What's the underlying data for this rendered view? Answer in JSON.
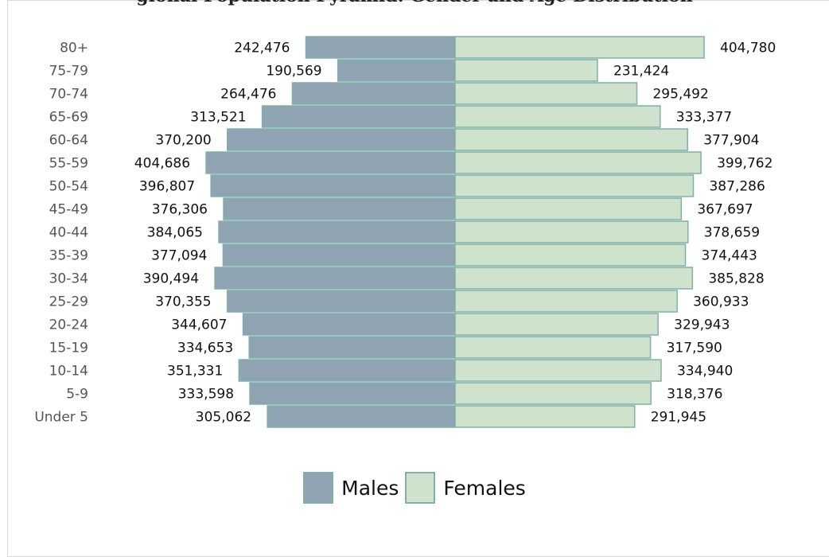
{
  "chart_data": {
    "type": "bar",
    "orientation": "horizontal",
    "layout": "population-pyramid",
    "title": "gional Population Pyramid: Gender and Age Distribution",
    "categories": [
      "80+",
      "75-79",
      "70-74",
      "65-69",
      "60-64",
      "55-59",
      "50-54",
      "45-49",
      "40-44",
      "35-39",
      "30-34",
      "25-29",
      "20-24",
      "15-19",
      "10-14",
      "5-9",
      "Under 5"
    ],
    "series": [
      {
        "name": "Males",
        "side": "left",
        "color": "#8fa3b3",
        "values": [
          242476,
          190569,
          264476,
          313521,
          370200,
          404686,
          396807,
          376306,
          384065,
          377094,
          390494,
          370355,
          344607,
          334653,
          351331,
          333598,
          305062
        ],
        "labels": [
          "242,476",
          "190,569",
          "264,476",
          "313,521",
          "370,200",
          "404,686",
          "396,807",
          "376,306",
          "384,065",
          "377,094",
          "390,494",
          "370,355",
          "344,607",
          "334,653",
          "351,331",
          "333,598",
          "305,062"
        ]
      },
      {
        "name": "Females",
        "side": "right",
        "color": "#cfe3cc",
        "values": [
          404780,
          231424,
          295492,
          333377,
          377904,
          399762,
          387286,
          367697,
          378659,
          374443,
          385828,
          360933,
          329943,
          317590,
          334940,
          318376,
          291945
        ],
        "labels": [
          "404,780",
          "231,424",
          "295,492",
          "333,377",
          "377,904",
          "399,762",
          "387,286",
          "367,697",
          "378,659",
          "374,443",
          "385,828",
          "360,933",
          "329,943",
          "317,590",
          "334,940",
          "318,376",
          "291,945"
        ]
      }
    ],
    "bar_border_color": "#7fb0aa",
    "legend_position": "bottom-center",
    "grid": false
  }
}
